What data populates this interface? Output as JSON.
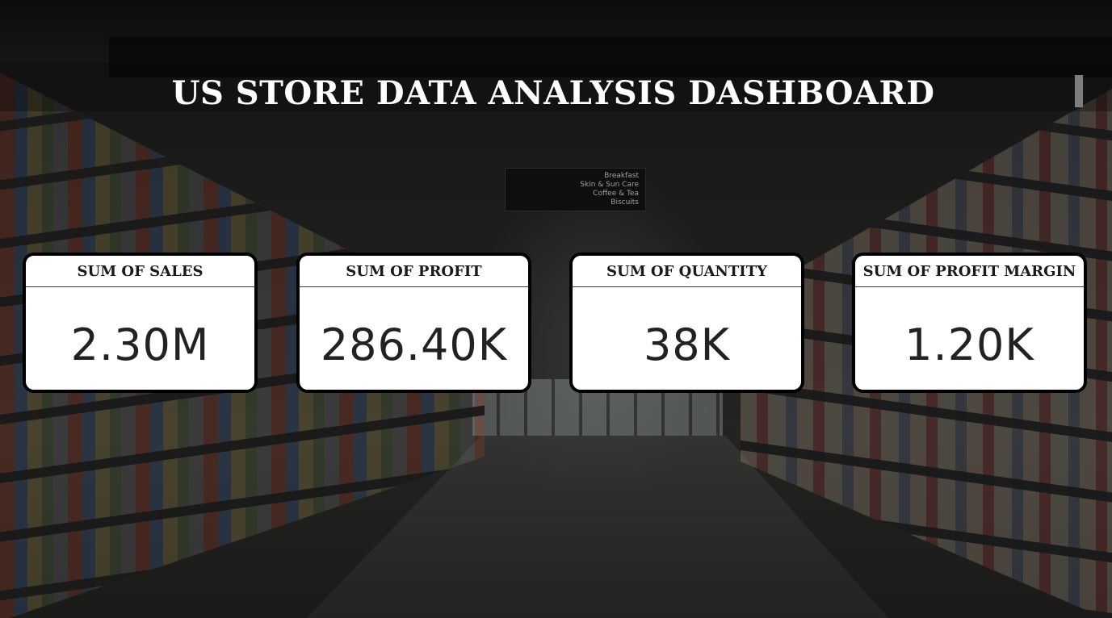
{
  "header": {
    "title": "US STORE DATA ANALYSIS DASHBOARD"
  },
  "kpis": [
    {
      "label": "SUM OF SALES",
      "value": "2.30M"
    },
    {
      "label": "SUM OF PROFIT",
      "value": "286.40K"
    },
    {
      "label": "SUM OF QUANTITY",
      "value": "38K"
    },
    {
      "label": "SUM OF PROFIT MARGIN",
      "value": "1.20K"
    }
  ],
  "background": {
    "description_icon": "supermarket-aisle-image",
    "signs": {
      "aisle_lines": [
        "Breakfast",
        "Skin & Sun Care",
        "Coffee & Tea",
        "Biscuits"
      ]
    }
  },
  "colors": {
    "card_background": "#ffffff",
    "card_border": "#000000",
    "title_text": "#ffffff",
    "page_background": "#1b1b1a"
  }
}
